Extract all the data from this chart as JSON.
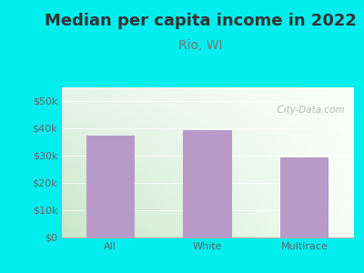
{
  "title": "Median per capita income in 2022",
  "subtitle": "Rio, WI",
  "categories": [
    "All",
    "White",
    "Multirace"
  ],
  "values": [
    37500,
    39500,
    29500
  ],
  "bar_color": "#b89ac8",
  "title_color": "#333333",
  "subtitle_color": "#777777",
  "tick_color": "#666666",
  "background_outer": "#00EEEE",
  "bg_color_left": "#c8e6c9",
  "bg_color_right": "#f0fff0",
  "bg_color_top": "#f5f5f5",
  "ylim": [
    0,
    55000
  ],
  "yticks": [
    0,
    10000,
    20000,
    30000,
    40000,
    50000
  ],
  "ytick_labels": [
    "$0",
    "$10k",
    "$20k",
    "$30k",
    "$40k",
    "$50k"
  ],
  "watermark": "  City-Data.com",
  "title_fontsize": 13,
  "subtitle_fontsize": 10,
  "tick_fontsize": 8,
  "bar_width": 0.5
}
